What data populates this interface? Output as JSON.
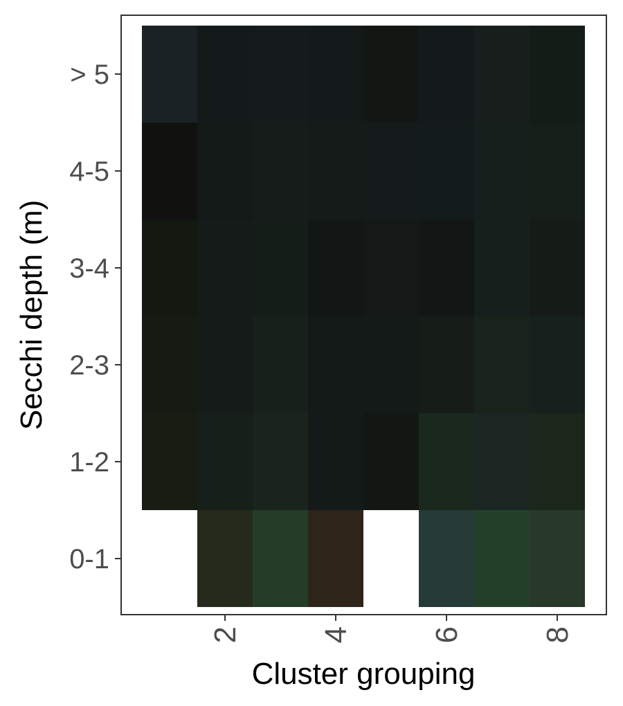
{
  "chart_data": {
    "type": "heatmap",
    "title": "",
    "xlabel": "Cluster grouping",
    "ylabel": "Secchi depth (m)",
    "x_categories": [
      1,
      2,
      3,
      4,
      5,
      6,
      7,
      8
    ],
    "x_tick_labels": [
      "2",
      "4",
      "6",
      "8"
    ],
    "x_tick_values": [
      2,
      4,
      6,
      8
    ],
    "y_categories": [
      "0-1",
      "1-2",
      "2-3",
      "3-4",
      "4-5",
      "> 5"
    ],
    "grid": false,
    "legend": "none",
    "cells": [
      {
        "x": 1,
        "y": "> 5",
        "color": "#1a2226"
      },
      {
        "x": 2,
        "y": "> 5",
        "color": "#141a1a"
      },
      {
        "x": 3,
        "y": "> 5",
        "color": "#151b1a"
      },
      {
        "x": 4,
        "y": "> 5",
        "color": "#141a1a"
      },
      {
        "x": 5,
        "y": "> 5",
        "color": "#121714"
      },
      {
        "x": 6,
        "y": "> 5",
        "color": "#141a1a"
      },
      {
        "x": 7,
        "y": "> 5",
        "color": "#171e1c"
      },
      {
        "x": 8,
        "y": "> 5",
        "color": "#141c17"
      },
      {
        "x": 1,
        "y": "4-5",
        "color": "#11120f"
      },
      {
        "x": 2,
        "y": "4-5",
        "color": "#131916"
      },
      {
        "x": 3,
        "y": "4-5",
        "color": "#151c19"
      },
      {
        "x": 4,
        "y": "4-5",
        "color": "#141b19"
      },
      {
        "x": 5,
        "y": "4-5",
        "color": "#141b1a"
      },
      {
        "x": 6,
        "y": "4-5",
        "color": "#141b1b"
      },
      {
        "x": 7,
        "y": "4-5",
        "color": "#15201d"
      },
      {
        "x": 8,
        "y": "4-5",
        "color": "#161e19"
      },
      {
        "x": 1,
        "y": "3-4",
        "color": "#131810"
      },
      {
        "x": 2,
        "y": "3-4",
        "color": "#141b18"
      },
      {
        "x": 3,
        "y": "3-4",
        "color": "#151d18"
      },
      {
        "x": 4,
        "y": "3-4",
        "color": "#121715"
      },
      {
        "x": 5,
        "y": "3-4",
        "color": "#141917"
      },
      {
        "x": 6,
        "y": "3-4",
        "color": "#121614"
      },
      {
        "x": 7,
        "y": "3-4",
        "color": "#15201d"
      },
      {
        "x": 8,
        "y": "3-4",
        "color": "#151c18"
      },
      {
        "x": 1,
        "y": "2-3",
        "color": "#151b12"
      },
      {
        "x": 2,
        "y": "2-3",
        "color": "#141b18"
      },
      {
        "x": 3,
        "y": "2-3",
        "color": "#172119"
      },
      {
        "x": 4,
        "y": "2-3",
        "color": "#141a17"
      },
      {
        "x": 5,
        "y": "2-3",
        "color": "#141a17"
      },
      {
        "x": 6,
        "y": "2-3",
        "color": "#161c17"
      },
      {
        "x": 7,
        "y": "2-3",
        "color": "#18231b"
      },
      {
        "x": 8,
        "y": "2-3",
        "color": "#16201c"
      },
      {
        "x": 1,
        "y": "1-2",
        "color": "#171d12"
      },
      {
        "x": 2,
        "y": "1-2",
        "color": "#161f19"
      },
      {
        "x": 3,
        "y": "1-2",
        "color": "#19251c"
      },
      {
        "x": 4,
        "y": "1-2",
        "color": "#141a17"
      },
      {
        "x": 5,
        "y": "1-2",
        "color": "#131714"
      },
      {
        "x": 6,
        "y": "1-2",
        "color": "#1a281e"
      },
      {
        "x": 7,
        "y": "1-2",
        "color": "#1b2522"
      },
      {
        "x": 8,
        "y": "1-2",
        "color": "#1b271b"
      },
      {
        "x": 2,
        "y": "0-1",
        "color": "#262a1c"
      },
      {
        "x": 3,
        "y": "0-1",
        "color": "#253c28"
      },
      {
        "x": 4,
        "y": "0-1",
        "color": "#2e241a"
      },
      {
        "x": 6,
        "y": "0-1",
        "color": "#263a38"
      },
      {
        "x": 7,
        "y": "0-1",
        "color": "#24402b"
      },
      {
        "x": 8,
        "y": "0-1",
        "color": "#28392a"
      }
    ]
  }
}
